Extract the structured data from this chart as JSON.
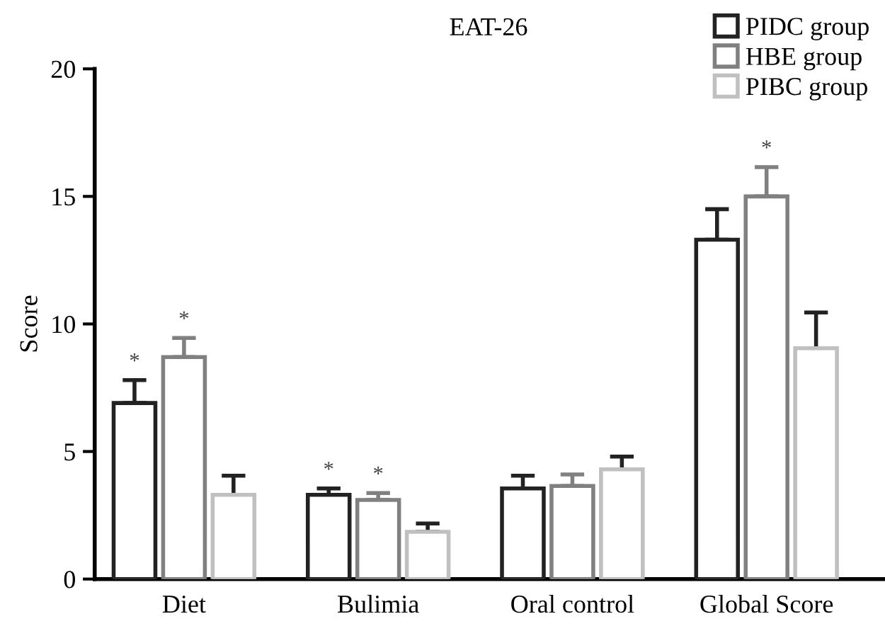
{
  "chart_data": {
    "type": "bar",
    "title": "EAT-26",
    "ylabel": "Score",
    "categories": [
      "Diet",
      "Bulimia",
      "Oral control",
      "Global Score"
    ],
    "series": [
      {
        "name": "PIDC group",
        "color": "#222222",
        "values": [
          6.9,
          3.3,
          3.55,
          13.3
        ],
        "errors": [
          0.9,
          0.25,
          0.5,
          1.2
        ],
        "value_labels": [
          "*",
          "*",
          null,
          null
        ]
      },
      {
        "name": "HBE group",
        "color": "#808080",
        "values": [
          8.7,
          3.1,
          3.65,
          15.0
        ],
        "errors": [
          0.75,
          0.27,
          0.45,
          1.15
        ],
        "value_labels": [
          "*",
          "*",
          null,
          "*"
        ]
      },
      {
        "name": "PIBC group",
        "color": "#c0c0c0",
        "values": [
          3.3,
          1.85,
          4.3,
          9.05
        ],
        "errors": [
          0.75,
          0.33,
          0.5,
          1.4
        ]
      }
    ],
    "ylim": [
      0,
      20
    ],
    "yticks": [
      0,
      5,
      10,
      15,
      20
    ],
    "grid": false,
    "legend": "top right"
  }
}
